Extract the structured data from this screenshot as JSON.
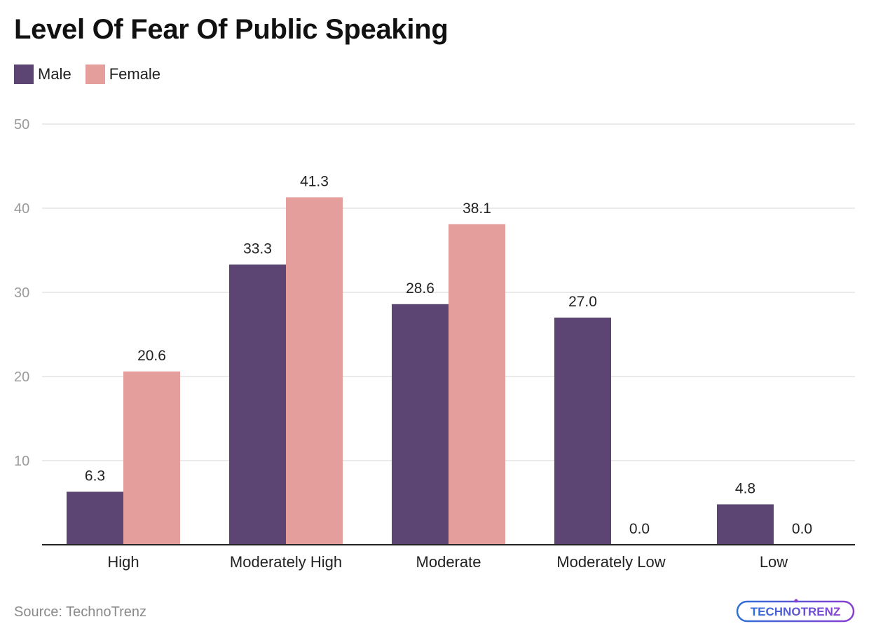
{
  "chart_data": {
    "type": "bar",
    "title": "Level Of Fear Of Public Speaking",
    "categories": [
      "High",
      "Moderately High",
      "Moderate",
      "Moderately Low",
      "Low"
    ],
    "series": [
      {
        "name": "Male",
        "color": "#5c4573",
        "values": [
          6.3,
          33.3,
          28.6,
          27.0,
          4.8
        ]
      },
      {
        "name": "Female",
        "color": "#e49f9d",
        "values": [
          20.6,
          41.3,
          38.1,
          0.0,
          0.0
        ]
      }
    ],
    "value_labels": {
      "Male": [
        "6.3",
        "33.3",
        "28.6",
        "27.0",
        "4.8"
      ],
      "Female": [
        "20.6",
        "41.3",
        "38.1",
        "0.0",
        "0.0"
      ]
    },
    "yticks": [
      10,
      20,
      30,
      40,
      50
    ],
    "ylim": [
      0,
      50
    ],
    "xlabel": "",
    "ylabel": "",
    "grid": true,
    "legend_position": "top-left"
  },
  "source": "Source: TechnoTrenz",
  "logo": {
    "text": "TECHNOTRENZ",
    "part1": "TECHN",
    "part2": "O",
    "part3": "TRENZ",
    "colors": {
      "start": "#2f6fd8",
      "end": "#8a3fd0"
    }
  }
}
